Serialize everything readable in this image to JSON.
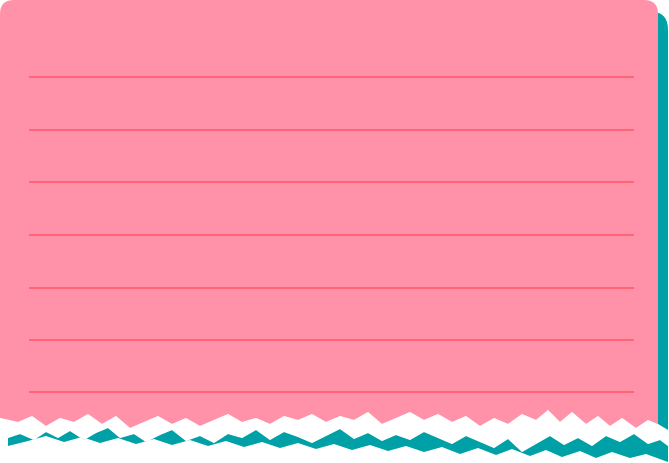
{
  "note_card": {
    "ruled_line_count": 7,
    "colors": {
      "paper": "#ff92a8",
      "rule_line": "#ff6576",
      "shadow": "#00a1a6",
      "torn_edge": "#ffffff"
    }
  }
}
